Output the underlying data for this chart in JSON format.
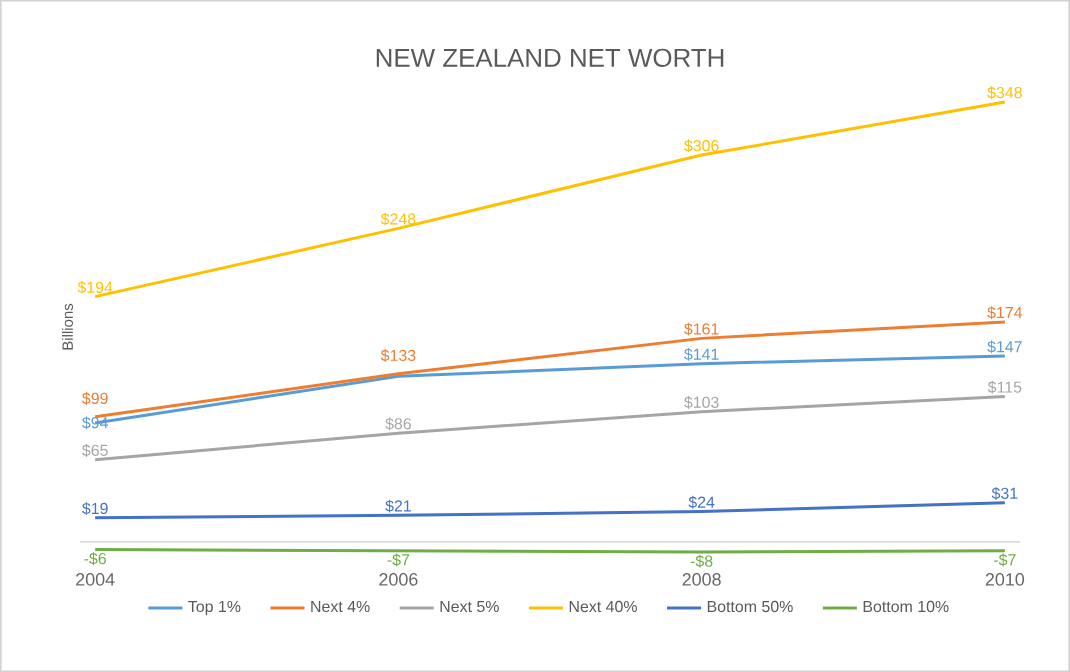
{
  "chart_data": {
    "type": "line",
    "title": "NEW ZEALAND NET WORTH",
    "ylabel": "Billions",
    "categories": [
      "2004",
      "2006",
      "2008",
      "2010"
    ],
    "legend": "bottom",
    "grid": false,
    "series": [
      {
        "name": "Top 1%",
        "color": "#5b9bd5",
        "values": [
          94,
          131,
          141,
          147
        ],
        "value_labels": [
          "$94",
          null,
          "$141",
          "$147"
        ]
      },
      {
        "name": "Next 4%",
        "color": "#ed7d31",
        "values": [
          99,
          133,
          161,
          174
        ],
        "value_labels": [
          "$99",
          "$133",
          "$161",
          "$174"
        ]
      },
      {
        "name": "Next 5%",
        "color": "#a5a5a5",
        "values": [
          65,
          86,
          103,
          115
        ],
        "value_labels": [
          "$65",
          "$86",
          "$103",
          "$115"
        ]
      },
      {
        "name": "Next 40%",
        "color": "#ffc000",
        "values": [
          194,
          248,
          306,
          348
        ],
        "value_labels": [
          "$194",
          "$248",
          "$306",
          "$348"
        ]
      },
      {
        "name": "Bottom 50%",
        "color": "#4472c4",
        "values": [
          19,
          21,
          24,
          31
        ],
        "value_labels": [
          "$19",
          "$21",
          "$24",
          "$31"
        ]
      },
      {
        "name": "Bottom 10%",
        "color": "#70ad47",
        "values": [
          -6,
          -7,
          -8,
          -7
        ],
        "value_labels": [
          "-$6",
          "-$7",
          "-$8",
          "-$7"
        ]
      }
    ]
  }
}
